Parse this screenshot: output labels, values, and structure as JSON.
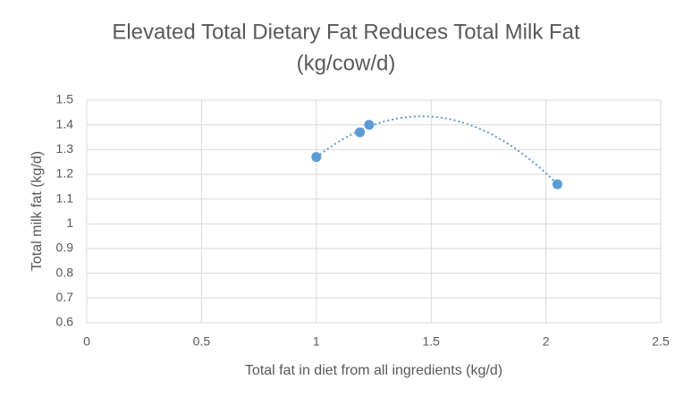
{
  "chart_data": {
    "type": "scatter",
    "title": [
      "Elevated Total Dietary Fat Reduces Total Milk Fat",
      "(kg/cow/d)"
    ],
    "x_label": "Total fat in diet from all ingredients (kg/d)",
    "y_label": "Total milk fat (kg/d)",
    "x": [
      1.0,
      1.19,
      1.23,
      2.05
    ],
    "values": [
      1.27,
      1.37,
      1.4,
      1.16
    ],
    "color": "#5b9bd5",
    "trendline": "polynomial-2",
    "xlim": [
      0,
      2.5
    ],
    "xticks": [
      0,
      0.5,
      1,
      1.5,
      2,
      2.5
    ],
    "ylim": [
      0.6,
      1.5
    ],
    "yticks": [
      0.6,
      0.7,
      0.8,
      0.9,
      1,
      1.1,
      1.2,
      1.3,
      1.4,
      1.5
    ],
    "grid": true
  }
}
